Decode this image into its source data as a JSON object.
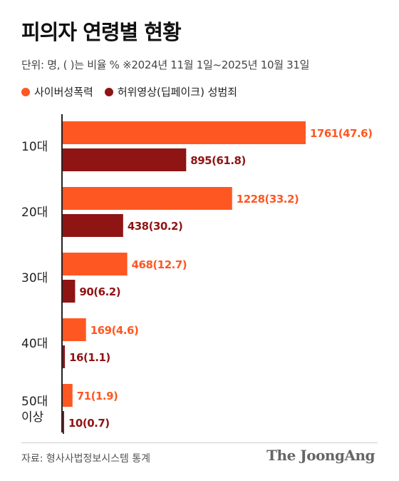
{
  "title": "피의자 연령별 현황",
  "unit_note": "단위: 명, ( )는 비율 %   ※2024년 11월 1일~2025년 10월 31일",
  "colors": {
    "cyber": "#ff5722",
    "deepfake": "#8f1414",
    "age_text": "#222222",
    "axis": "#222222"
  },
  "chart_data": {
    "type": "bar",
    "orientation": "horizontal",
    "categories": [
      "10대",
      "20대",
      "30대",
      "40대",
      "50대\n이상"
    ],
    "series": [
      {
        "name": "사이버성폭력",
        "values": [
          1761,
          1228,
          468,
          169,
          71
        ],
        "labels": [
          "1761(47.6)",
          "1228(33.2)",
          "468(12.7)",
          "169(4.6)",
          "71(1.9)"
        ]
      },
      {
        "name": "허위영상(딥페이크) 성범죄",
        "values": [
          895,
          438,
          90,
          16,
          10
        ],
        "labels": [
          "895(61.8)",
          "438(30.2)",
          "90(6.2)",
          "16(1.1)",
          "10(0.7)"
        ]
      }
    ],
    "xlim": [
      0,
      1800
    ],
    "grid": false,
    "legend_position": "top-left"
  },
  "source": "자료: 형사사법정보시스템 통계",
  "brand": "The JoongAng"
}
